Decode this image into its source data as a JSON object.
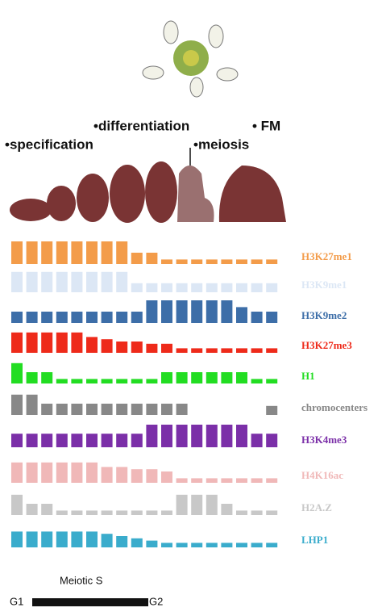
{
  "stages": [
    "•specification",
    "•differentiation",
    "•meiosis",
    "• FM"
  ],
  "tracks": [
    {
      "name": "H3K27me1",
      "color": "#f39c4a",
      "values": [
        10,
        10,
        10,
        10,
        10,
        10,
        10,
        10,
        5,
        5,
        2,
        2,
        2,
        2,
        2,
        2,
        2,
        2
      ]
    },
    {
      "name": "H3K9me1",
      "color": "#dce7f5",
      "values": [
        9,
        9,
        9,
        9,
        9,
        9,
        9,
        9,
        4,
        4,
        4,
        4,
        4,
        4,
        4,
        4,
        4,
        4
      ]
    },
    {
      "name": "H3K9me2",
      "color": "#3d6ea8",
      "values": [
        5,
        5,
        5,
        5,
        5,
        5,
        5,
        5,
        5,
        10,
        10,
        10,
        10,
        10,
        10,
        7,
        5,
        5
      ]
    },
    {
      "name": "H3K27me3",
      "color": "#ee2a1a",
      "values": [
        9,
        9,
        9,
        9,
        9,
        7,
        6,
        5,
        5,
        4,
        4,
        2,
        2,
        2,
        2,
        2,
        2,
        2
      ]
    },
    {
      "name": "H1",
      "color": "#22dd22",
      "values": [
        9,
        5,
        5,
        2,
        2,
        2,
        2,
        2,
        2,
        2,
        5,
        5,
        5,
        5,
        5,
        5,
        2,
        2
      ]
    },
    {
      "name": "chromocenters",
      "color": "#888888",
      "values": [
        9,
        9,
        5,
        5,
        5,
        5,
        5,
        5,
        5,
        5,
        5,
        5,
        0,
        0,
        0,
        0,
        0,
        4
      ]
    },
    {
      "name": "H3K4me3",
      "color": "#7b2fa8",
      "values": [
        6,
        6,
        6,
        6,
        6,
        6,
        6,
        6,
        6,
        10,
        10,
        10,
        10,
        10,
        10,
        10,
        6,
        6
      ]
    },
    {
      "name": "H4K16ac",
      "color": "#f0b8b8",
      "values": [
        9,
        9,
        9,
        9,
        9,
        9,
        7,
        7,
        6,
        6,
        5,
        2,
        2,
        2,
        2,
        2,
        2,
        2
      ]
    },
    {
      "name": "H2A.Z",
      "color": "#c8c8c8",
      "values": [
        9,
        5,
        5,
        2,
        2,
        2,
        2,
        2,
        2,
        2,
        2,
        9,
        9,
        9,
        5,
        2,
        2,
        2
      ]
    },
    {
      "name": "LHP1",
      "color": "#3aaccc",
      "values": [
        7,
        7,
        7,
        7,
        7,
        7,
        6,
        5,
        4,
        3,
        2,
        2,
        2,
        2,
        2,
        2,
        2,
        2
      ]
    }
  ],
  "axis": {
    "title": "Meiotic S",
    "start": "G1",
    "end": "G2"
  }
}
